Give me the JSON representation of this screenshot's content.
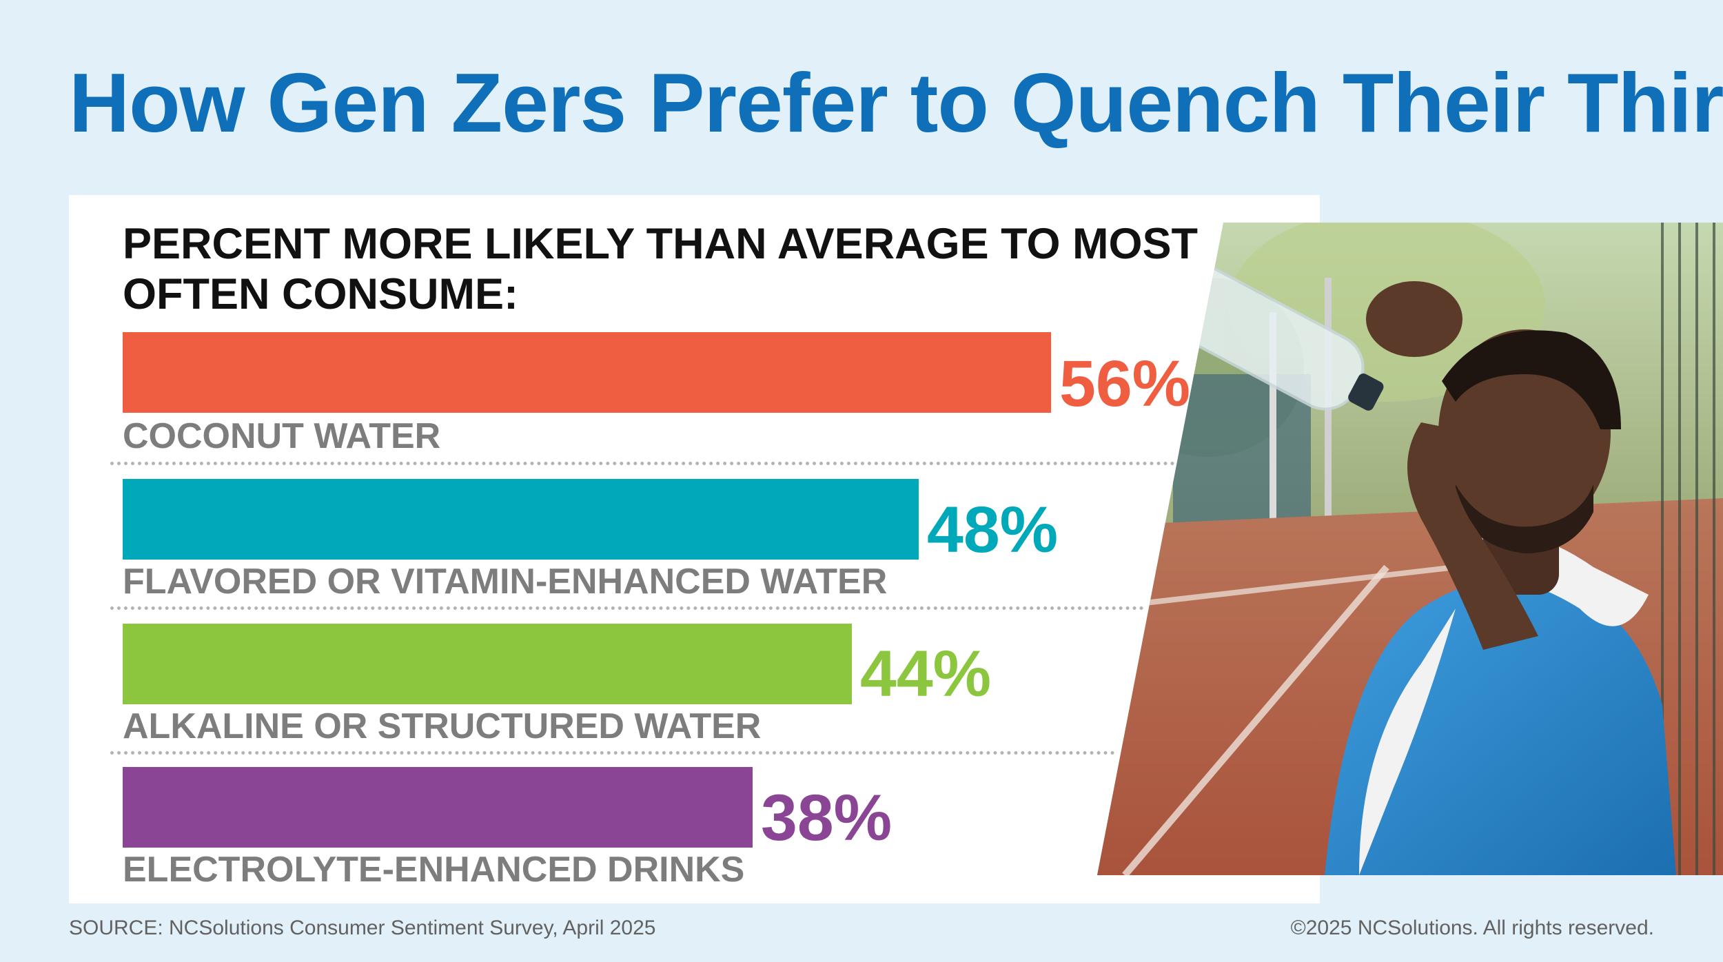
{
  "header": {
    "title": "How Gen Zers Prefer to Quench Their Thirst"
  },
  "chart_data": {
    "type": "bar",
    "orientation": "horizontal",
    "title": "PERCENT MORE LIKELY THAN AVERAGE TO MOST OFTEN CONSUME:",
    "categories": [
      "COCONUT WATER",
      "FLAVORED OR VITAMIN-ENHANCED WATER",
      "ALKALINE OR STRUCTURED WATER",
      "ELECTROLYTE-ENHANCED DRINKS"
    ],
    "values": [
      56,
      48,
      44,
      38
    ],
    "value_labels": [
      "56%",
      "48%",
      "44%",
      "38%"
    ],
    "colors": [
      "#ef5e41",
      "#00a9b9",
      "#8cc63f",
      "#8a4695"
    ],
    "xlabel": "",
    "ylabel": "",
    "xlim": [
      0,
      60
    ],
    "grid": false,
    "legend": "none"
  },
  "footer": {
    "source": "SOURCE: NCSolutions Consumer Sentiment Survey, April 2025",
    "copyright": "©2025 NCSolutions. All rights reserved."
  },
  "photo": {
    "icon": "man-drinking-water-photo"
  }
}
